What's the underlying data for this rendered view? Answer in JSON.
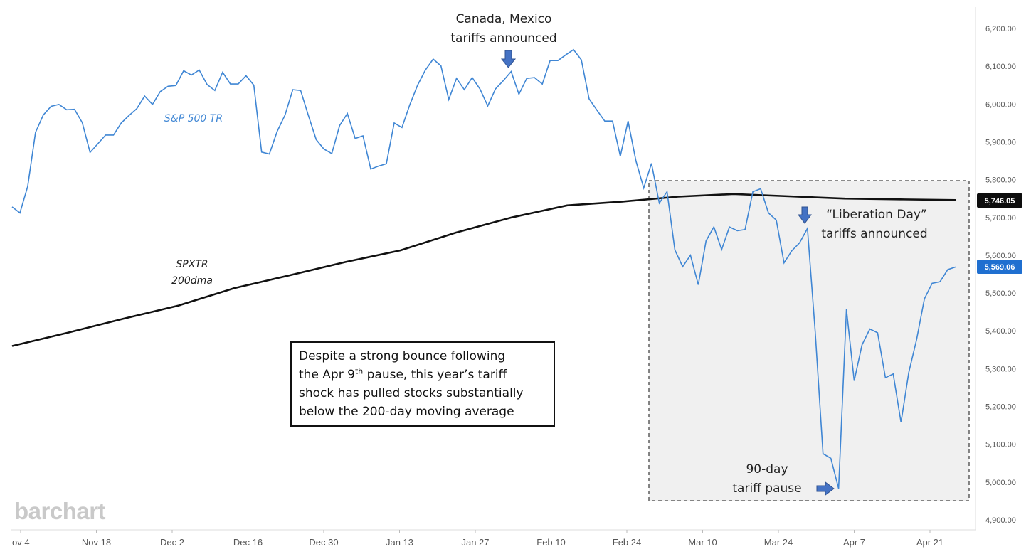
{
  "brand": "barchart",
  "note": {
    "line1": "Despite a strong bounce following",
    "line2_pre": "the Apr 9",
    "line2_sup": "th",
    "line2_post": " pause, this year’s tariff",
    "line3": "shock has pulled stocks substantially",
    "line4": "below the 200-day moving average"
  },
  "chart_data": {
    "type": "line",
    "x_tick_labels": [
      "ov 4",
      "Nov 18",
      "Dec 2",
      "Dec 16",
      "Dec 30",
      "Jan 13",
      "Jan 27",
      "Feb 10",
      "Feb 24",
      "Mar 10",
      "Mar 24",
      "Apr 7",
      "Apr 21"
    ],
    "y_tick_labels": [
      "6,200.00",
      "6,100.00",
      "6,000.00",
      "5,900.00",
      "5,800.00",
      "5,700.00",
      "5,600.00",
      "5,500.00",
      "5,400.00",
      "5,300.00",
      "5,200.00",
      "5,100.00",
      "5,000.00",
      "4,900.00"
    ],
    "ylim": [
      4900,
      6200
    ],
    "y_ticks": [
      6200,
      6100,
      6000,
      5900,
      5800,
      5700,
      5600,
      5500,
      5400,
      5300,
      5200,
      5100,
      5000,
      4900
    ],
    "series": [
      {
        "name": "S&P 500 TR",
        "color": "#3f86d4",
        "last_value_label": "5,569.06",
        "values": [
          5728,
          5712,
          5782,
          5925,
          5971,
          5994,
          5999,
          5985,
          5986,
          5951,
          5872,
          5895,
          5918,
          5918,
          5950,
          5970,
          5988,
          6021,
          5999,
          6033,
          6047,
          6049,
          6088,
          6077,
          6090,
          6052,
          6036,
          6084,
          6053,
          6053,
          6075,
          6050,
          5873,
          5868,
          5928,
          5971,
          6038,
          6036,
          5970,
          5906,
          5881,
          5869,
          5943,
          5975,
          5909,
          5916,
          5828,
          5836,
          5842,
          5950,
          5938,
          5998,
          6050,
          6090,
          6119,
          6101,
          6012,
          6068,
          6038,
          6070,
          6040,
          5995,
          6040,
          6062,
          6086,
          6026,
          6068,
          6070,
          6053,
          6115,
          6115,
          6130,
          6144,
          6117,
          6014,
          5984,
          5955,
          5955,
          5862,
          5955,
          5850,
          5778,
          5843,
          5738,
          5768,
          5614,
          5570,
          5600,
          5522,
          5638,
          5675,
          5615,
          5675,
          5665,
          5668,
          5768,
          5776,
          5712,
          5693,
          5580,
          5612,
          5633,
          5671,
          5398,
          5075,
          5063,
          4983,
          5457,
          5268,
          5363,
          5405,
          5395,
          5276,
          5286,
          5158,
          5290,
          5377,
          5485,
          5526,
          5530,
          5562,
          5569
        ]
      },
      {
        "name": "SPXTR 200dma",
        "color": "#111111",
        "last_value_label": "5,746.05",
        "values": [
          5360,
          5395,
          5432,
          5467,
          5513,
          5547,
          5582,
          5613,
          5660,
          5700,
          5732,
          5742,
          5755,
          5762,
          5756,
          5750,
          5748,
          5746
        ]
      }
    ],
    "annotations": [
      {
        "line1": "Canada, Mexico",
        "line2": "tariffs announced"
      },
      {
        "line1": "“Liberation Day”",
        "line2": "tariffs announced"
      },
      {
        "line1": "90-day",
        "line2": "tariff pause"
      }
    ],
    "series_labels": {
      "sp500": "S&P 500 TR",
      "dma_line1": "SPXTR",
      "dma_line2": "200dma"
    },
    "grid": false,
    "highlight_region": {
      "from_x_label": "Mar 10",
      "to_x_label": "Apr 21",
      "style": "dashed box"
    }
  }
}
